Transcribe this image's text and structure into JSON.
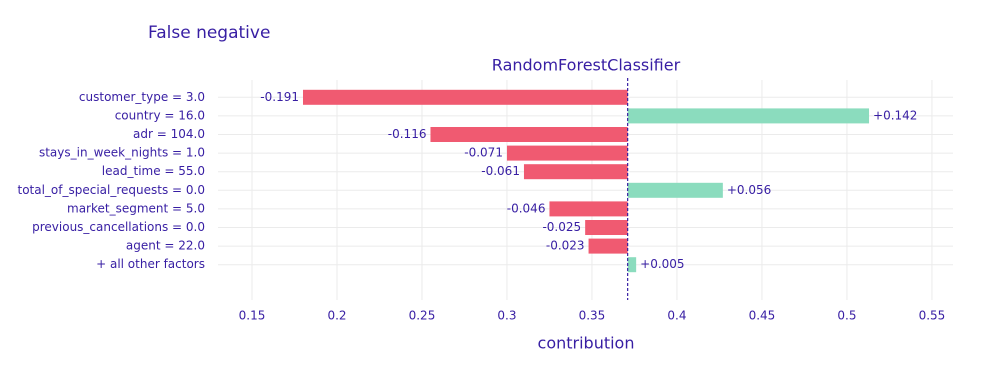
{
  "chart_data": {
    "type": "breakdown",
    "title": "False negative",
    "subtitle": "RandomForestClassifier",
    "x_label": "contribution",
    "categories": [
      "customer_type = 3.0",
      "country = 16.0",
      "adr = 104.0",
      "stays_in_week_nights = 1.0",
      "lead_time = 55.0",
      "total_of_special_requests = 0.0",
      "market_segment = 5.0",
      "previous_cancellations = 0.0",
      "agent = 22.0",
      "+ all other factors"
    ],
    "values": [
      -0.191,
      0.142,
      -0.116,
      -0.071,
      -0.061,
      0.056,
      -0.046,
      -0.025,
      -0.023,
      0.005
    ],
    "value_labels": [
      "-0.191",
      "+0.142",
      "-0.116",
      "-0.071",
      "-0.061",
      "+0.056",
      "-0.046",
      "-0.025",
      "-0.023",
      "+0.005"
    ],
    "colors": [
      "#f05a71",
      "#8bdcbe",
      "#f05a71",
      "#f05a71",
      "#f05a71",
      "#8bdcbe",
      "#f05a71",
      "#f05a71",
      "#f05a71",
      "#8bdcbe"
    ],
    "baseline": 0.371,
    "xlim": [
      0.13,
      0.5624
    ],
    "xticks": [
      0.15,
      0.2,
      0.25,
      0.3,
      0.35,
      0.4,
      0.45,
      0.5,
      0.55
    ],
    "grid": true
  }
}
